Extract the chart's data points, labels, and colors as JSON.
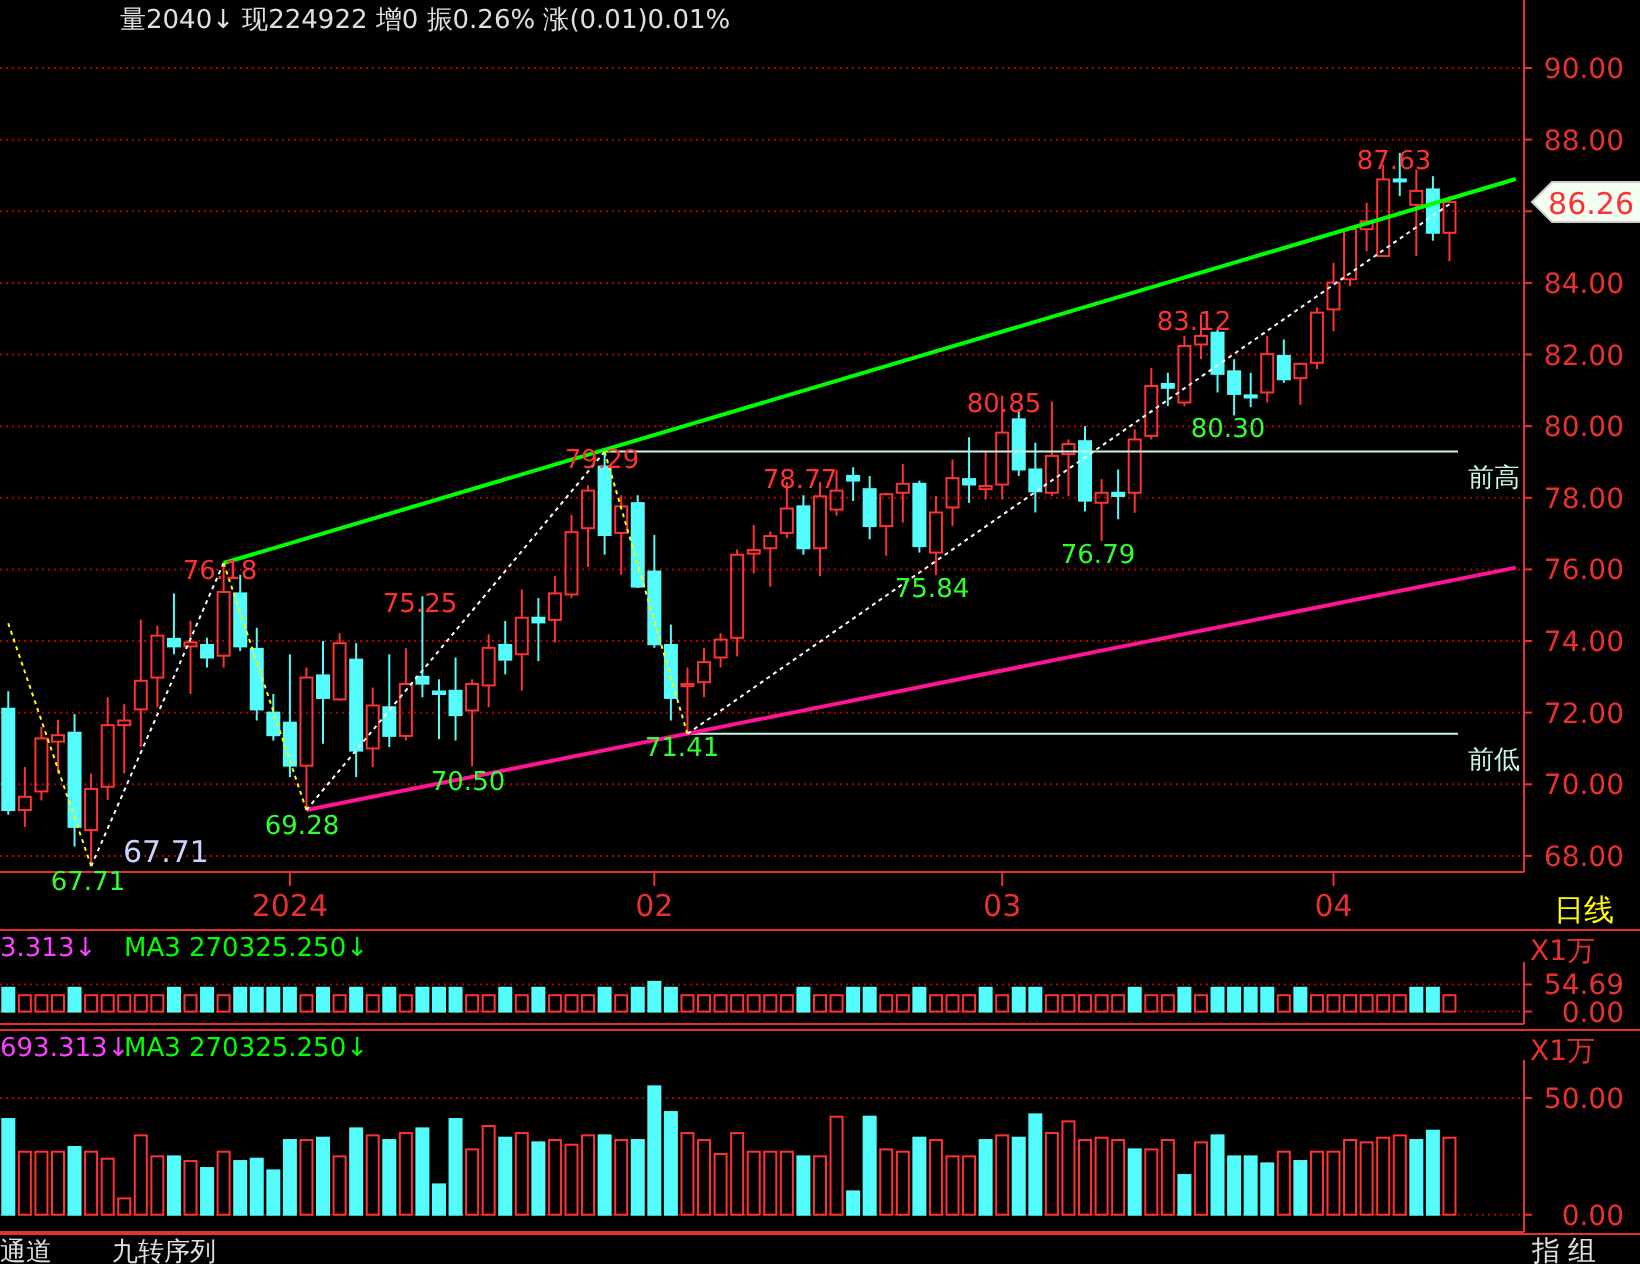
{
  "chart_data": [
    {
      "type": "candlestick",
      "categories": [
        null,
        null,
        null,
        null,
        null,
        null,
        null,
        null,
        null,
        null,
        null,
        null,
        null,
        null,
        null,
        null,
        null,
        "2024",
        null,
        null,
        null,
        null,
        null,
        null,
        null,
        null,
        null,
        null,
        null,
        null,
        null,
        null,
        null,
        null,
        null,
        null,
        null,
        null,
        null,
        "02",
        null,
        null,
        null,
        null,
        null,
        null,
        null,
        null,
        null,
        null,
        null,
        null,
        null,
        null,
        null,
        null,
        null,
        null,
        null,
        null,
        "03",
        null,
        null,
        null,
        null,
        null,
        null,
        null,
        null,
        null,
        null,
        null,
        null,
        null,
        null,
        null,
        null,
        null,
        null,
        null,
        "04",
        null,
        null,
        null,
        null,
        null,
        null,
        null,
        null,
        null,
        null,
        null
      ],
      "ohlc": [
        [
          72.11,
          72.6,
          69.15,
          69.28
        ],
        [
          69.28,
          70.48,
          68.81,
          69.65
        ],
        [
          69.8,
          71.6,
          69.55,
          71.28
        ],
        [
          71.19,
          71.8,
          70.3,
          71.37
        ],
        [
          71.44,
          71.96,
          68.26,
          68.81
        ],
        [
          68.72,
          70.3,
          67.71,
          69.87
        ],
        [
          69.93,
          72.43,
          69.56,
          71.65
        ],
        [
          71.65,
          72.24,
          70.3,
          71.78
        ],
        [
          72.09,
          74.6,
          71.04,
          72.89
        ],
        [
          72.98,
          74.43,
          72.15,
          74.15
        ],
        [
          74.06,
          75.33,
          73.63,
          73.85
        ],
        [
          73.85,
          74.56,
          72.52,
          73.96
        ],
        [
          73.89,
          74.09,
          73.26,
          73.54
        ],
        [
          73.59,
          76.18,
          73.26,
          75.37
        ],
        [
          75.33,
          75.85,
          73.72,
          73.85
        ],
        [
          73.78,
          74.37,
          71.78,
          72.09
        ],
        [
          72.0,
          72.52,
          71.22,
          71.37
        ],
        [
          71.72,
          73.63,
          70.2,
          70.52
        ],
        [
          70.52,
          73.26,
          69.28,
          72.98
        ],
        [
          73.04,
          74.0,
          71.13,
          72.41
        ],
        [
          72.37,
          74.22,
          72.33,
          73.94
        ],
        [
          73.48,
          73.94,
          70.2,
          70.94
        ],
        [
          71.0,
          72.7,
          70.48,
          72.2
        ],
        [
          72.15,
          73.63,
          71.04,
          71.35
        ],
        [
          71.35,
          73.8,
          71.22,
          72.8
        ],
        [
          73.0,
          75.25,
          72.43,
          72.81
        ],
        [
          72.59,
          72.93,
          71.26,
          72.52
        ],
        [
          72.61,
          73.54,
          71.22,
          71.93
        ],
        [
          72.06,
          72.93,
          70.5,
          72.8
        ],
        [
          72.76,
          74.19,
          72.15,
          73.81
        ],
        [
          73.89,
          74.56,
          73.07,
          73.48
        ],
        [
          73.63,
          75.44,
          72.61,
          74.65
        ],
        [
          74.65,
          75.2,
          73.44,
          74.52
        ],
        [
          74.59,
          75.81,
          73.96,
          75.33
        ],
        [
          75.3,
          77.52,
          75.2,
          77.04
        ],
        [
          77.15,
          78.35,
          76.07,
          78.2
        ],
        [
          78.87,
          79.29,
          76.41,
          76.96
        ],
        [
          77.02,
          78.07,
          75.85,
          77.76
        ],
        [
          77.85,
          78.07,
          75.48,
          75.52
        ],
        [
          75.94,
          76.96,
          73.81,
          73.91
        ],
        [
          73.89,
          74.46,
          71.78,
          72.41
        ],
        [
          72.74,
          73.26,
          71.41,
          72.8
        ],
        [
          72.85,
          73.81,
          72.43,
          73.41
        ],
        [
          73.54,
          74.22,
          73.26,
          74.04
        ],
        [
          74.09,
          76.56,
          73.57,
          76.41
        ],
        [
          76.44,
          77.24,
          75.89,
          76.54
        ],
        [
          76.59,
          77.06,
          75.52,
          76.93
        ],
        [
          77.02,
          78.44,
          76.87,
          77.7
        ],
        [
          77.76,
          78.07,
          76.41,
          76.59
        ],
        [
          76.59,
          78.44,
          75.81,
          78.04
        ],
        [
          77.67,
          78.77,
          77.5,
          78.2
        ],
        [
          78.61,
          78.85,
          77.91,
          78.48
        ],
        [
          78.24,
          78.61,
          76.84,
          77.21
        ],
        [
          77.21,
          78.14,
          76.38,
          78.1
        ],
        [
          78.14,
          78.94,
          77.31,
          78.39
        ],
        [
          78.39,
          78.48,
          76.47,
          76.65
        ],
        [
          76.47,
          78.05,
          75.84,
          77.59
        ],
        [
          77.73,
          79.07,
          77.21,
          78.55
        ],
        [
          78.52,
          79.69,
          77.86,
          78.37
        ],
        [
          78.24,
          79.3,
          77.95,
          78.33
        ],
        [
          78.37,
          80.85,
          77.95,
          79.82
        ],
        [
          80.19,
          80.47,
          78.61,
          78.79
        ],
        [
          78.79,
          79.54,
          77.59,
          78.18
        ],
        [
          78.14,
          80.69,
          78.05,
          79.17
        ],
        [
          79.22,
          79.63,
          78.05,
          79.5
        ],
        [
          79.58,
          80.0,
          77.62,
          77.92
        ],
        [
          77.86,
          78.52,
          76.79,
          78.14
        ],
        [
          78.14,
          78.79,
          77.4,
          78.05
        ],
        [
          78.14,
          79.91,
          77.58,
          79.63
        ],
        [
          79.73,
          81.62,
          79.63,
          81.12
        ],
        [
          81.18,
          81.49,
          80.56,
          81.07
        ],
        [
          80.66,
          82.52,
          80.56,
          82.24
        ],
        [
          82.28,
          83.12,
          81.87,
          82.52
        ],
        [
          82.61,
          82.7,
          80.94,
          81.46
        ],
        [
          81.53,
          81.87,
          80.3,
          80.9
        ],
        [
          80.86,
          81.49,
          80.53,
          80.8
        ],
        [
          80.94,
          82.52,
          80.66,
          82.01
        ],
        [
          81.96,
          82.42,
          81.21,
          81.31
        ],
        [
          81.34,
          81.77,
          80.6,
          81.74
        ],
        [
          81.77,
          83.32,
          81.59,
          83.17
        ],
        [
          83.26,
          84.56,
          82.65,
          84.01
        ],
        [
          84.1,
          85.59,
          83.91,
          85.5
        ],
        [
          85.5,
          86.24,
          84.88,
          85.72
        ],
        [
          84.75,
          87.3,
          84.75,
          86.89
        ],
        [
          86.89,
          87.63,
          86.43,
          86.84
        ],
        [
          86.18,
          87.17,
          84.75,
          86.57
        ],
        [
          86.61,
          86.98,
          85.18,
          85.4
        ],
        [
          85.4,
          86.43,
          84.6,
          86.26
        ],
        null,
        null,
        null,
        null
      ],
      "series": [
        {
          "type": "line",
          "color": "#00ff00",
          "values": [
            null,
            null,
            null,
            null,
            null,
            null,
            null,
            null,
            null,
            null,
            null,
            null,
            null,
            76.18,
            null,
            null,
            null,
            null,
            null,
            null,
            null,
            null,
            null,
            null,
            null,
            null,
            null,
            null,
            null,
            null,
            null,
            null,
            null,
            null,
            null,
            null,
            null,
            null,
            null,
            null,
            null,
            null,
            null,
            null,
            null,
            null,
            null,
            null,
            null,
            null,
            null,
            null,
            null,
            null,
            null,
            null,
            null,
            null,
            null,
            null,
            null,
            null,
            null,
            null,
            null,
            null,
            null,
            null,
            null,
            null,
            null,
            null,
            null,
            null,
            null,
            null,
            null,
            null,
            null,
            null,
            null,
            null,
            null,
            null,
            null,
            null,
            null,
            null,
            null,
            null,
            null,
            86.9
          ]
        },
        {
          "type": "line",
          "color": "#ff1493",
          "values": [
            null,
            null,
            null,
            null,
            null,
            null,
            null,
            null,
            null,
            null,
            null,
            null,
            null,
            null,
            null,
            null,
            null,
            null,
            69.28,
            null,
            null,
            null,
            null,
            null,
            null,
            null,
            null,
            null,
            null,
            null,
            null,
            null,
            null,
            null,
            null,
            null,
            null,
            null,
            null,
            null,
            null,
            null,
            null,
            null,
            null,
            null,
            null,
            null,
            null,
            null,
            null,
            null,
            null,
            null,
            null,
            null,
            null,
            null,
            null,
            null,
            null,
            null,
            null,
            null,
            null,
            null,
            null,
            null,
            null,
            null,
            null,
            null,
            null,
            null,
            null,
            null,
            null,
            null,
            null,
            null,
            null,
            null,
            null,
            null,
            null,
            null,
            null,
            null,
            null,
            null,
            null,
            76.05
          ]
        },
        {
          "type": "line",
          "color": "#ffffff",
          "line_style": "dotted",
          "values": [
            null,
            null,
            null,
            null,
            null,
            67.71,
            null,
            null,
            null,
            null,
            null,
            null,
            null,
            76.18,
            null,
            null,
            null,
            null,
            null,
            null,
            null,
            null,
            null,
            null,
            null,
            null,
            null,
            null,
            null,
            null,
            null,
            null,
            null,
            null,
            null,
            null,
            null,
            null,
            null,
            null,
            null,
            null,
            null,
            null,
            null,
            null,
            null,
            null,
            null,
            null,
            null,
            null,
            null,
            null,
            null,
            null,
            null,
            null,
            null,
            null,
            null,
            null,
            null,
            null,
            null,
            null,
            null,
            null,
            null,
            null,
            null,
            null,
            null,
            null,
            null,
            null,
            null,
            null,
            null,
            null,
            null,
            null,
            null,
            null,
            null,
            null,
            null,
            null,
            null,
            null,
            null,
            null
          ]
        },
        {
          "type": "line",
          "color": "#ffffff",
          "line_style": "dotted",
          "values": [
            null,
            null,
            null,
            null,
            null,
            null,
            null,
            null,
            null,
            null,
            null,
            null,
            null,
            null,
            null,
            null,
            null,
            null,
            69.28,
            null,
            null,
            null,
            null,
            null,
            null,
            null,
            null,
            null,
            null,
            null,
            null,
            null,
            null,
            null,
            null,
            null,
            79.29,
            null,
            null,
            null,
            null,
            null,
            null,
            null,
            null,
            null,
            null,
            null,
            null,
            null,
            null,
            null,
            null,
            null,
            null,
            null,
            null,
            null,
            null,
            null,
            null,
            null,
            null,
            null,
            null,
            null,
            null,
            null,
            null,
            null,
            null,
            null,
            null,
            null,
            null,
            null,
            null,
            null,
            null,
            null,
            null,
            null,
            null,
            null,
            null,
            null,
            null,
            null,
            null,
            null,
            null,
            null
          ]
        },
        {
          "type": "line",
          "color": "#ffffff",
          "line_style": "dotted",
          "values": [
            null,
            null,
            null,
            null,
            null,
            null,
            null,
            null,
            null,
            null,
            null,
            null,
            null,
            null,
            null,
            null,
            null,
            null,
            null,
            null,
            null,
            null,
            null,
            null,
            null,
            null,
            null,
            null,
            null,
            null,
            null,
            null,
            null,
            null,
            null,
            null,
            null,
            null,
            null,
            null,
            null,
            71.41,
            null,
            null,
            null,
            null,
            null,
            null,
            null,
            null,
            null,
            null,
            null,
            null,
            null,
            null,
            null,
            null,
            null,
            null,
            null,
            null,
            null,
            null,
            null,
            null,
            null,
            null,
            null,
            null,
            null,
            null,
            null,
            null,
            null,
            null,
            null,
            null,
            null,
            null,
            null,
            null,
            null,
            null,
            null,
            null,
            null,
            86.2,
            null,
            null,
            null,
            null
          ]
        },
        {
          "type": "line",
          "color": "#ffff00",
          "line_style": "dotted",
          "values": [
            74.5,
            null,
            null,
            null,
            null,
            67.71,
            null,
            null,
            null,
            null,
            null,
            null,
            null,
            null,
            null,
            null,
            null,
            null,
            null,
            null,
            null,
            null,
            null,
            null,
            null,
            null,
            null,
            null,
            null,
            null,
            null,
            null,
            null,
            null,
            null,
            null,
            null,
            null,
            null,
            null,
            null,
            null,
            null,
            null,
            null,
            null,
            null,
            null,
            null,
            null,
            null,
            null,
            null,
            null,
            null,
            null,
            null,
            null,
            null,
            null,
            null,
            null,
            null,
            null,
            null,
            null,
            null,
            null,
            null,
            null,
            null,
            null,
            null,
            null,
            null,
            null,
            null,
            null,
            null,
            null,
            null,
            null,
            null,
            null,
            null,
            null,
            null,
            null,
            null,
            null,
            null,
            null
          ]
        },
        {
          "type": "line",
          "color": "#ffff00",
          "line_style": "dotted",
          "values": [
            null,
            null,
            null,
            null,
            null,
            null,
            null,
            null,
            null,
            null,
            null,
            null,
            null,
            76.18,
            null,
            null,
            null,
            null,
            69.28,
            null,
            null,
            null,
            null,
            null,
            null,
            null,
            null,
            null,
            null,
            null,
            null,
            null,
            null,
            null,
            null,
            null,
            null,
            null,
            null,
            null,
            null,
            null,
            null,
            null,
            null,
            null,
            null,
            null,
            null,
            null,
            null,
            null,
            null,
            null,
            null,
            null,
            null,
            null,
            null,
            null,
            null,
            null,
            null,
            null,
            null,
            null,
            null,
            null,
            null,
            null,
            null,
            null,
            null,
            null,
            null,
            null,
            null,
            null,
            null,
            null,
            null,
            null,
            null,
            null,
            null,
            null,
            null,
            null,
            null,
            null,
            null,
            null
          ]
        },
        {
          "type": "line",
          "color": "#ffff00",
          "line_style": "dotted",
          "values": [
            null,
            null,
            null,
            null,
            null,
            null,
            null,
            null,
            null,
            null,
            null,
            null,
            null,
            null,
            null,
            null,
            null,
            null,
            null,
            null,
            null,
            null,
            null,
            null,
            null,
            null,
            null,
            null,
            null,
            null,
            null,
            null,
            null,
            null,
            null,
            null,
            79.29,
            null,
            null,
            null,
            null,
            71.41,
            null,
            null,
            null,
            null,
            null,
            null,
            null,
            null,
            null,
            null,
            null,
            null,
            null,
            null,
            null,
            null,
            null,
            null,
            null,
            null,
            null,
            null,
            null,
            null,
            null,
            null,
            null,
            null,
            null,
            null,
            null,
            null,
            null,
            null,
            null,
            null,
            null,
            null,
            null,
            null,
            null,
            null,
            null,
            null,
            null,
            null,
            null,
            null,
            null,
            null
          ]
        }
      ],
      "ylim": [
        67.55,
        91.9
      ],
      "yticks": [
        {
          "value": 68,
          "label": "68.00"
        },
        {
          "value": 70,
          "label": "70.00"
        },
        {
          "value": 72,
          "label": "72.00"
        },
        {
          "value": 74,
          "label": "74.00"
        },
        {
          "value": 76,
          "label": "76.00"
        },
        {
          "value": 78,
          "label": "78.00"
        },
        {
          "value": 80,
          "label": "80.00"
        },
        {
          "value": 82,
          "label": "82.00"
        },
        {
          "value": 84,
          "label": "84.00"
        },
        {
          "value": 86,
          "label": null
        },
        {
          "value": 88,
          "label": "88.00"
        },
        {
          "value": 90,
          "label": "90.00"
        }
      ],
      "grid": "y",
      "ref_lines": [
        {
          "axis": "y",
          "value": 79.29,
          "label": "前高",
          "color": "#c8f5e6"
        },
        {
          "axis": "y",
          "value": 71.41,
          "label": "前低",
          "color": "#c8f5e6"
        }
      ],
      "annotations": [
        "量2040↓  现224922  增0  振0.26%  涨(0.01)0.01%",
        "日线",
        {
          "text": "76.18",
          "y": 76.18
        },
        {
          "text": "75.25",
          "y": 75.25
        },
        {
          "text": "79.29",
          "y": 79.29
        },
        "78.77",
        {
          "text": "80.85",
          "y": 80.85
        },
        {
          "text": "83.12",
          "y": 83.12
        },
        {
          "text": "87.63",
          "y": 87.63
        },
        "67.71",
        "67.71",
        {
          "text": "69.28",
          "y": 69.28
        },
        {
          "text": "70.50",
          "y": 70.5
        },
        {
          "text": "71.41",
          "y": 71.41
        },
        {
          "text": "75.84",
          "y": 75.84
        },
        {
          "text": "76.79",
          "y": 76.79
        },
        {
          "text": "80.30",
          "y": 80.3
        },
        "86.26"
      ]
    },
    {
      "type": "bar",
      "categories": [
        null,
        null,
        null,
        null,
        null,
        null,
        null,
        null,
        null,
        null,
        null,
        null,
        null,
        null,
        null,
        null,
        null,
        null,
        null,
        null,
        null,
        null,
        null,
        null,
        null,
        null,
        null,
        null,
        null,
        null,
        null,
        null,
        null,
        null,
        null,
        null,
        null,
        null,
        null,
        null,
        null,
        null,
        null,
        null,
        null,
        null,
        null,
        null,
        null,
        null,
        null,
        null,
        null,
        null,
        null,
        null,
        null,
        null,
        null,
        null,
        null,
        null,
        null,
        null,
        null,
        null,
        null,
        null,
        null,
        null,
        null,
        null,
        null,
        null,
        null,
        null,
        null,
        null,
        null,
        null,
        null,
        null,
        null,
        null,
        null,
        null,
        null,
        null,
        null,
        null,
        null,
        null
      ],
      "values": [
        48,
        33,
        33,
        33,
        48,
        33,
        33,
        33,
        33,
        33,
        48,
        33,
        48,
        33,
        48,
        48,
        48,
        48,
        33,
        48,
        33,
        48,
        33,
        48,
        33,
        48,
        48,
        48,
        33,
        33,
        48,
        33,
        48,
        33,
        33,
        33,
        48,
        33,
        48,
        60,
        48,
        33,
        33,
        33,
        33,
        33,
        33,
        33,
        48,
        33,
        33,
        48,
        48,
        33,
        33,
        48,
        33,
        33,
        33,
        48,
        33,
        48,
        48,
        33,
        33,
        33,
        33,
        33,
        48,
        33,
        33,
        48,
        33,
        48,
        48,
        48,
        48,
        33,
        48,
        33,
        33,
        33,
        33,
        33,
        33,
        48,
        48,
        33,
        null,
        null,
        null,
        null
      ],
      "colors": [
        "#54fcfc",
        "#ff3232",
        "#ff3232",
        "#ff3232",
        "#54fcfc",
        "#ff3232",
        "#ff3232",
        "#ff3232",
        "#ff3232",
        "#ff3232",
        "#54fcfc",
        "#ff3232",
        "#54fcfc",
        "#ff3232",
        "#54fcfc",
        "#54fcfc",
        "#54fcfc",
        "#54fcfc",
        "#ff3232",
        "#54fcfc",
        "#ff3232",
        "#54fcfc",
        "#ff3232",
        "#54fcfc",
        "#ff3232",
        "#54fcfc",
        "#54fcfc",
        "#54fcfc",
        "#ff3232",
        "#ff3232",
        "#54fcfc",
        "#ff3232",
        "#54fcfc",
        "#ff3232",
        "#ff3232",
        "#ff3232",
        "#54fcfc",
        "#ff3232",
        "#54fcfc",
        "#54fcfc",
        "#54fcfc",
        "#ff3232",
        "#ff3232",
        "#ff3232",
        "#ff3232",
        "#ff3232",
        "#ff3232",
        "#ff3232",
        "#54fcfc",
        "#ff3232",
        "#ff3232",
        "#54fcfc",
        "#54fcfc",
        "#ff3232",
        "#ff3232",
        "#54fcfc",
        "#ff3232",
        "#ff3232",
        "#ff3232",
        "#54fcfc",
        "#ff3232",
        "#54fcfc",
        "#54fcfc",
        "#ff3232",
        "#ff3232",
        "#ff3232",
        "#ff3232",
        "#ff3232",
        "#54fcfc",
        "#ff3232",
        "#ff3232",
        "#54fcfc",
        "#ff3232",
        "#54fcfc",
        "#54fcfc",
        "#54fcfc",
        "#54fcfc",
        "#ff3232",
        "#54fcfc",
        "#ff3232",
        "#ff3232",
        "#ff3232",
        "#ff3232",
        "#ff3232",
        "#ff3232",
        "#54fcfc",
        "#54fcfc",
        "#ff3232",
        null,
        null,
        null,
        null
      ],
      "ylim": [
        -25,
        100
      ],
      "yticks": [
        {
          "value": 0,
          "label": "0.00"
        },
        {
          "value": 54.69,
          "label": "54.69"
        }
      ],
      "grid": "y",
      "annotations": [
        "3.313↓",
        "MA3 270325.250↓",
        "X1万"
      ]
    },
    {
      "type": "bar",
      "categories": [
        null,
        null,
        null,
        null,
        null,
        null,
        null,
        null,
        null,
        null,
        null,
        null,
        null,
        null,
        null,
        null,
        null,
        null,
        null,
        null,
        null,
        null,
        null,
        null,
        null,
        null,
        null,
        null,
        null,
        null,
        null,
        null,
        null,
        null,
        null,
        null,
        null,
        null,
        null,
        null,
        null,
        null,
        null,
        null,
        null,
        null,
        null,
        null,
        null,
        null,
        null,
        null,
        null,
        null,
        null,
        null,
        null,
        null,
        null,
        null,
        null,
        null,
        null,
        null,
        null,
        null,
        null,
        null,
        null,
        null,
        null,
        null,
        null,
        null,
        null,
        null,
        null,
        null,
        null,
        null,
        null,
        null,
        null,
        null,
        null,
        null,
        null,
        null,
        null,
        null,
        null,
        null
      ],
      "values": [
        41,
        27,
        27,
        27,
        29,
        27,
        24,
        7,
        34,
        25,
        25,
        23,
        20,
        27,
        23,
        24,
        19,
        32,
        32,
        33,
        25,
        37,
        34,
        32,
        35,
        37,
        13,
        41,
        28,
        38,
        33,
        35,
        31,
        32,
        30,
        34,
        34,
        32,
        32,
        55,
        44,
        35,
        32,
        26,
        35,
        27,
        27,
        27,
        25,
        25,
        42,
        10,
        42,
        28,
        27,
        33,
        32,
        25,
        25,
        32,
        34,
        33,
        43,
        35,
        40,
        32,
        33,
        32,
        28,
        28,
        32,
        17,
        31,
        34,
        25,
        25,
        22,
        27,
        23,
        27,
        27,
        32,
        31,
        33,
        34,
        32,
        36,
        33,
        null,
        null,
        null,
        null
      ],
      "colors": [
        "#54fcfc",
        "#ff3232",
        "#ff3232",
        "#ff3232",
        "#54fcfc",
        "#ff3232",
        "#ff3232",
        "#ff3232",
        "#ff3232",
        "#ff3232",
        "#54fcfc",
        "#ff3232",
        "#54fcfc",
        "#ff3232",
        "#54fcfc",
        "#54fcfc",
        "#54fcfc",
        "#54fcfc",
        "#ff3232",
        "#54fcfc",
        "#ff3232",
        "#54fcfc",
        "#ff3232",
        "#54fcfc",
        "#ff3232",
        "#54fcfc",
        "#54fcfc",
        "#54fcfc",
        "#ff3232",
        "#ff3232",
        "#54fcfc",
        "#ff3232",
        "#54fcfc",
        "#ff3232",
        "#ff3232",
        "#ff3232",
        "#54fcfc",
        "#ff3232",
        "#54fcfc",
        "#54fcfc",
        "#54fcfc",
        "#ff3232",
        "#ff3232",
        "#ff3232",
        "#ff3232",
        "#ff3232",
        "#ff3232",
        "#ff3232",
        "#54fcfc",
        "#ff3232",
        "#ff3232",
        "#54fcfc",
        "#54fcfc",
        "#ff3232",
        "#ff3232",
        "#54fcfc",
        "#ff3232",
        "#ff3232",
        "#ff3232",
        "#54fcfc",
        "#ff3232",
        "#54fcfc",
        "#54fcfc",
        "#ff3232",
        "#ff3232",
        "#ff3232",
        "#ff3232",
        "#ff3232",
        "#54fcfc",
        "#ff3232",
        "#ff3232",
        "#54fcfc",
        "#ff3232",
        "#54fcfc",
        "#54fcfc",
        "#54fcfc",
        "#54fcfc",
        "#ff3232",
        "#54fcfc",
        "#ff3232",
        "#ff3232",
        "#ff3232",
        "#ff3232",
        "#ff3232",
        "#ff3232",
        "#54fcfc",
        "#54fcfc",
        "#ff3232",
        null,
        null,
        null,
        null
      ],
      "ylim": [
        -7.4,
        66.3
      ],
      "yticks": [
        {
          "value": 0,
          "label": "0.00"
        },
        {
          "value": 50,
          "label": "50.00"
        }
      ],
      "grid": "y",
      "annotations": [
        "693.313↓",
        "MA3 270325.250↓",
        "X1万",
        "通道",
        "九转序列",
        "指",
        "组"
      ]
    }
  ]
}
